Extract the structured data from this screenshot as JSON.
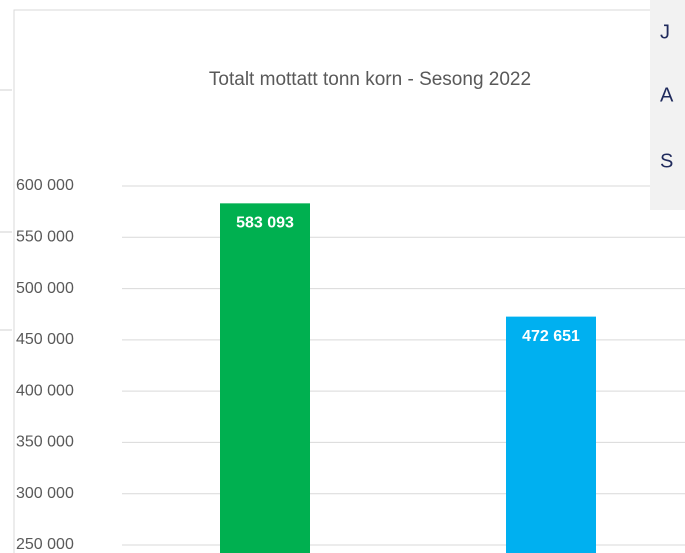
{
  "chart_data": {
    "type": "bar",
    "title": "Totalt mottatt tonn korn - Sesong 2022",
    "categories": [
      null,
      null
    ],
    "series": [
      {
        "name": null,
        "values": [
          583093,
          472651
        ],
        "value_labels": [
          "583 093",
          "472 651"
        ],
        "colors": [
          "#00b050",
          "#00b0f0"
        ]
      }
    ],
    "ylim": [
      242000,
      600000
    ],
    "yticks": [
      {
        "value": 250000,
        "label": "250 000"
      },
      {
        "value": 300000,
        "label": "300 000"
      },
      {
        "value": 350000,
        "label": "350 000"
      },
      {
        "value": 400000,
        "label": "400 000"
      },
      {
        "value": 450000,
        "label": "450 000"
      },
      {
        "value": 500000,
        "label": "500 000"
      },
      {
        "value": 550000,
        "label": "550 000"
      },
      {
        "value": 600000,
        "label": "600 000"
      }
    ],
    "grid": true
  },
  "side_panel": {
    "lines": [
      "J",
      "A",
      "S"
    ]
  }
}
